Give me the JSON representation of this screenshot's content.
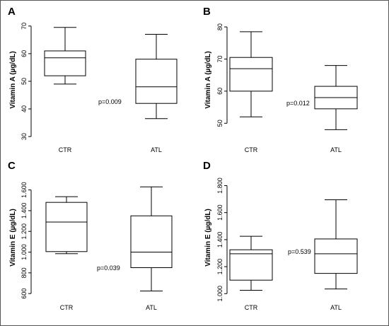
{
  "chart_data": [
    {
      "type": "box",
      "panel": "A",
      "ylabel": "Vitamin A (µg/dL)",
      "ylim": [
        29,
        72
      ],
      "yticks": [
        30,
        40,
        50,
        60,
        70
      ],
      "ytick_labels": [
        "30",
        "40",
        "50",
        "60",
        "70"
      ],
      "categories": [
        "CTR",
        "ATL"
      ],
      "boxes": [
        {
          "min": 49,
          "q1": 52,
          "median": 58.5,
          "q3": 61,
          "max": 69.5
        },
        {
          "min": 36.5,
          "q1": 42,
          "median": 48,
          "q3": 58,
          "max": 67
        }
      ],
      "annotation": "p=0.009"
    },
    {
      "type": "box",
      "panel": "B",
      "ylabel": "Vitamin A (µg/dL)",
      "ylim": [
        45,
        82
      ],
      "yticks": [
        50,
        60,
        70,
        80
      ],
      "ytick_labels": [
        "50",
        "60",
        "70",
        "80"
      ],
      "categories": [
        "CTR",
        "ATL"
      ],
      "boxes": [
        {
          "min": 52,
          "q1": 60,
          "median": 67,
          "q3": 70.5,
          "max": 78.5
        },
        {
          "min": 48,
          "q1": 54.5,
          "median": 58,
          "q3": 61.5,
          "max": 68
        }
      ],
      "annotation": "p=0.012"
    },
    {
      "type": "box",
      "panel": "C",
      "ylabel": "Vitamin E (µg/dL)",
      "ylim": [
        560,
        1720
      ],
      "yticks": [
        600,
        800,
        1000,
        1200,
        1400,
        1600
      ],
      "ytick_labels": [
        "600",
        "800",
        "1.000",
        "1.200",
        "1.400",
        "1.600"
      ],
      "categories": [
        "CTR",
        "ATL"
      ],
      "boxes": [
        {
          "min": 985,
          "q1": 1005,
          "median": 1290,
          "q3": 1480,
          "max": 1535
        },
        {
          "min": 625,
          "q1": 850,
          "median": 1000,
          "q3": 1350,
          "max": 1630
        }
      ],
      "annotation": "p=0.039"
    },
    {
      "type": "box",
      "panel": "D",
      "ylabel": "Vitamin E (µg/dL)",
      "ylim": [
        970,
        1860
      ],
      "yticks": [
        1000,
        1200,
        1400,
        1600,
        1800
      ],
      "ytick_labels": [
        "1.000",
        "1.200",
        "1.400",
        "1.600",
        "1.800"
      ],
      "categories": [
        "CTR",
        "ATL"
      ],
      "boxes": [
        {
          "min": 1025,
          "q1": 1100,
          "median": 1295,
          "q3": 1325,
          "max": 1425
        },
        {
          "min": 1035,
          "q1": 1150,
          "median": 1295,
          "q3": 1405,
          "max": 1695
        }
      ],
      "annotation": "p=0.539"
    }
  ]
}
